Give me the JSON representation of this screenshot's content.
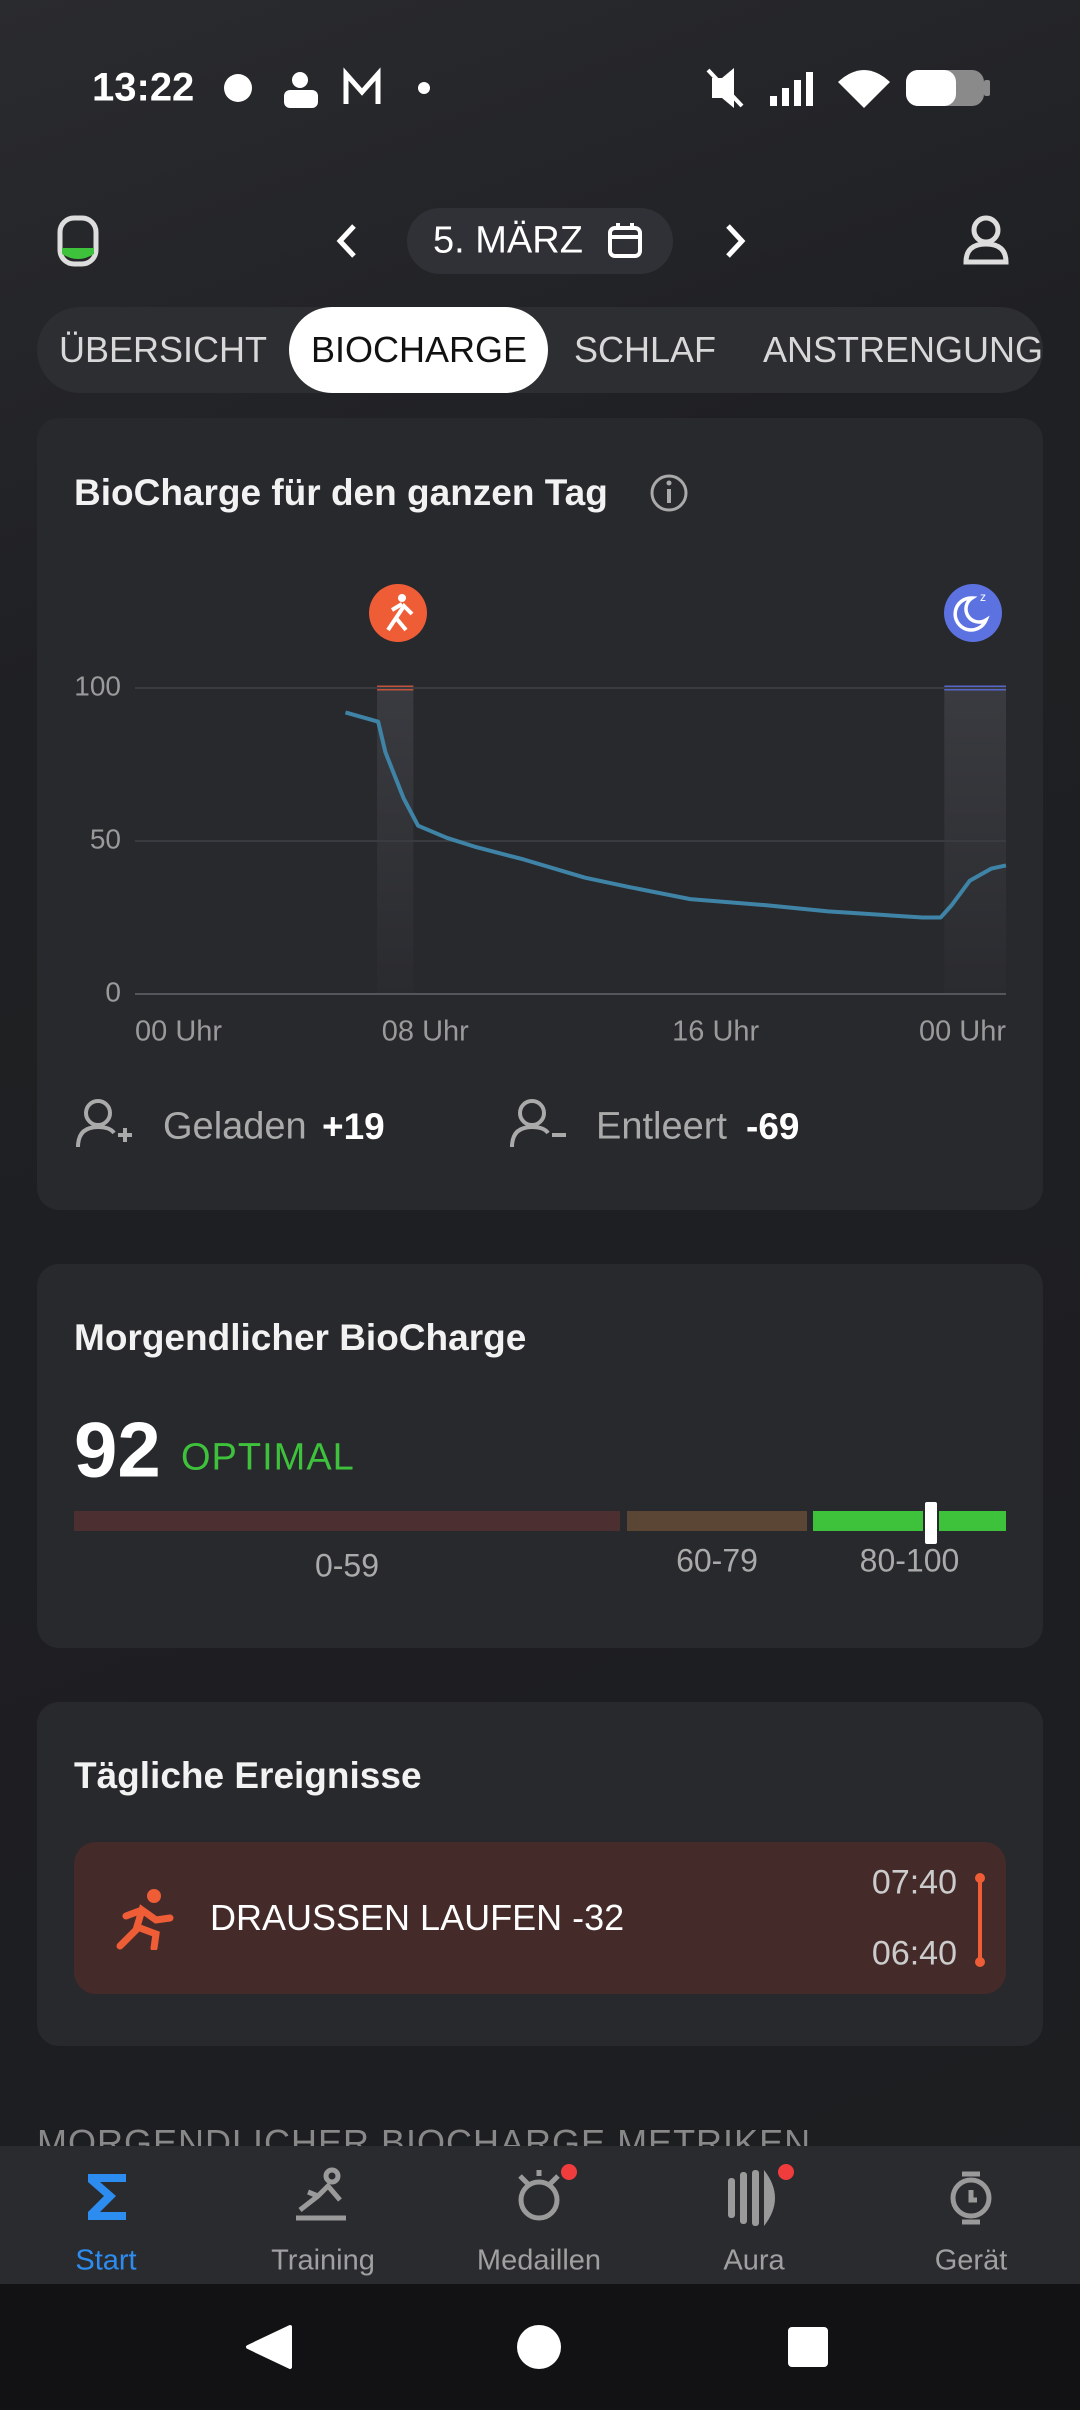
{
  "status_bar": {
    "time": "13:22"
  },
  "header": {
    "date": "5. MÄRZ"
  },
  "tabs": [
    "ÜBERSICHT",
    "BIOCHARGE",
    "SCHLAF",
    "ANSTRENGUNG"
  ],
  "daily_card": {
    "title": "BioCharge für den ganzen Tag",
    "charged": {
      "label": "Geladen",
      "value": "+19"
    },
    "drained": {
      "label": "Entleert",
      "value": "-69"
    }
  },
  "chart_data": {
    "type": "line",
    "color": "#3f84a6",
    "x": [
      5.8,
      6.7,
      6.9,
      7.4,
      7.8,
      8.6,
      9.4,
      10.7,
      12.4,
      13.6,
      15.3,
      17.4,
      19.1,
      21.7,
      22.2,
      22.5,
      23.0,
      23.6,
      24
    ],
    "values": [
      92,
      89,
      79,
      64,
      55,
      51,
      48,
      44,
      38,
      35,
      31,
      29,
      27,
      25,
      25,
      29,
      37,
      41,
      42
    ],
    "xlim": [
      0,
      24
    ],
    "xticks": [
      {
        "value": 0,
        "label": "00 Uhr"
      },
      {
        "value": 8,
        "label": "08 Uhr"
      },
      {
        "value": 16,
        "label": "16 Uhr"
      },
      {
        "value": 24,
        "label": "00 Uhr"
      }
    ],
    "ylim": [
      0,
      100
    ],
    "yticks": [
      0,
      50,
      100
    ],
    "grid": true,
    "bands": [
      {
        "start": 6.67,
        "end": 7.67,
        "color": "#c0533a"
      },
      {
        "start": 22.3,
        "end": 24,
        "color": "#5566c8"
      }
    ]
  },
  "morning": {
    "title": "Morgendlicher BioCharge",
    "score": 92,
    "status": "OPTIMAL",
    "ranges": [
      {
        "label": "0-59",
        "min": 0,
        "max": 59,
        "color": "#4b2f31"
      },
      {
        "label": "60-79",
        "min": 60,
        "max": 79,
        "color": "#5b4535"
      },
      {
        "label": "80-100",
        "min": 80,
        "max": 100,
        "color": "#3ec23b"
      }
    ]
  },
  "events": {
    "title": "Tägliche Ereignisse",
    "items": [
      {
        "name": "DRAUSSEN LAUFEN -32",
        "end": "07:40",
        "start": "06:40"
      }
    ]
  },
  "section_peek": "MORGENDLICHER BIOCHARGE METRIKEN",
  "nav": [
    "Start",
    "Training",
    "Medaillen",
    "Aura",
    "Gerät"
  ]
}
